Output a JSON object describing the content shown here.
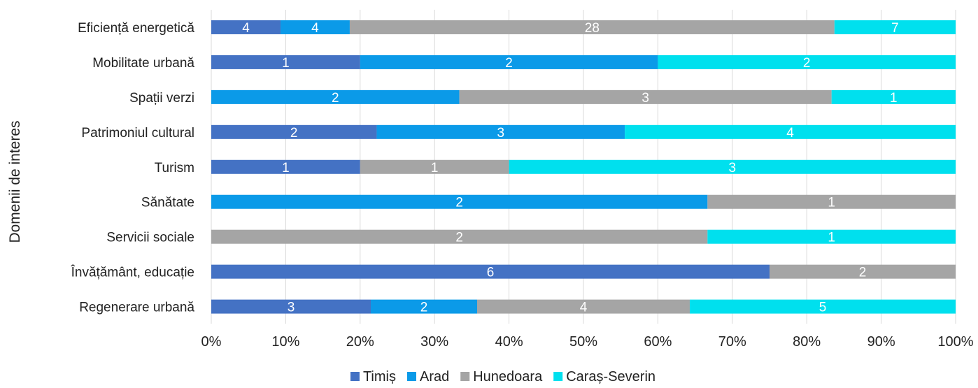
{
  "chart_data": {
    "type": "bar",
    "orientation": "horizontal",
    "stacking": "percent",
    "title": "",
    "xlabel": "",
    "ylabel": "Domenii de interes",
    "xlim": [
      0,
      100
    ],
    "x_ticks": [
      "0%",
      "10%",
      "20%",
      "30%",
      "40%",
      "50%",
      "60%",
      "70%",
      "80%",
      "90%",
      "100%"
    ],
    "grid": "vertical",
    "legend": "bottom",
    "categories": [
      "Eficiență energetică",
      "Mobilitate urbană",
      "Spații verzi",
      "Patrimoniul cultural",
      "Turism",
      "Sănătate",
      "Servicii sociale",
      "Învățământ, educație",
      "Regenerare urbană"
    ],
    "series": [
      {
        "name": "Timiș",
        "color": "#4472c4",
        "values": [
          4,
          1,
          0,
          2,
          1,
          0,
          0,
          6,
          3
        ]
      },
      {
        "name": "Arad",
        "color": "#0b9ae8",
        "values": [
          4,
          2,
          2,
          3,
          0,
          2,
          0,
          0,
          2
        ]
      },
      {
        "name": "Hunedoara",
        "color": "#a5a5a5",
        "values": [
          28,
          0,
          3,
          0,
          1,
          1,
          2,
          2,
          4
        ]
      },
      {
        "name": "Caraș-Severin",
        "color": "#00e0ee",
        "values": [
          7,
          2,
          1,
          4,
          3,
          0,
          1,
          0,
          5
        ]
      }
    ]
  }
}
